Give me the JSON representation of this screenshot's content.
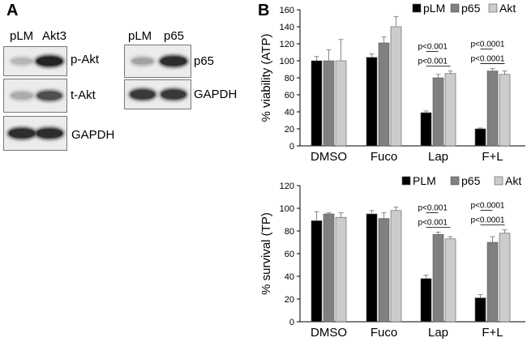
{
  "panels": {
    "a": {
      "letter": "A",
      "blot_left": {
        "lanes": [
          "pLM",
          "Akt3"
        ],
        "rows": [
          {
            "label": "p-Akt",
            "band_darkness": [
              0.25,
              0.95
            ]
          },
          {
            "label": "t-Akt",
            "band_darkness": [
              0.3,
              0.75
            ]
          },
          {
            "label": "GAPDH",
            "band_darkness": [
              0.9,
              0.9
            ]
          }
        ]
      },
      "blot_right": {
        "lanes": [
          "pLM",
          "p65"
        ],
        "rows": [
          {
            "label": "p65",
            "band_darkness": [
              0.35,
              0.9
            ]
          },
          {
            "label": "GAPDH",
            "band_darkness": [
              0.85,
              0.85
            ]
          }
        ]
      }
    },
    "b": {
      "letter": "B"
    }
  },
  "chart_data": [
    {
      "type": "bar",
      "categories": [
        "DMSO",
        "Fuco",
        "Lap",
        "F+L"
      ],
      "series": [
        {
          "name": "pLM",
          "color": "#000000",
          "values": [
            100,
            104,
            39,
            20
          ],
          "errors": [
            5,
            4,
            2,
            1
          ]
        },
        {
          "name": "p65",
          "color": "#808080",
          "values": [
            100,
            121,
            80,
            88
          ],
          "errors": [
            13,
            7,
            4,
            3
          ]
        },
        {
          "name": "Akt",
          "color": "#cccccc",
          "values": [
            100,
            140,
            85,
            84
          ],
          "errors": [
            25,
            12,
            3,
            4
          ]
        }
      ],
      "ylabel": "% viability (ATP)",
      "ylim": [
        0,
        160
      ],
      "yticks": [
        0,
        20,
        40,
        60,
        80,
        100,
        120,
        140,
        160
      ],
      "legend_position": "top-right",
      "annotations": [
        {
          "text": "p<0.001",
          "category": "Lap",
          "from": "pLM",
          "to": "p65"
        },
        {
          "text": "p<0.001",
          "category": "Lap",
          "from": "pLM",
          "to": "Akt"
        },
        {
          "text": "p<0.0001",
          "category": "F+L",
          "from": "pLM",
          "to": "p65"
        },
        {
          "text": "p<0.0001",
          "category": "F+L",
          "from": "pLM",
          "to": "Akt"
        }
      ]
    },
    {
      "type": "bar",
      "categories": [
        "DMSO",
        "Fuco",
        "Lap",
        "F+L"
      ],
      "series": [
        {
          "name": "PLM",
          "color": "#000000",
          "values": [
            89,
            95,
            38,
            21
          ],
          "errors": [
            8,
            3,
            3,
            3
          ]
        },
        {
          "name": "p65",
          "color": "#808080",
          "values": [
            95,
            91,
            77,
            70
          ],
          "errors": [
            1,
            5,
            2,
            5
          ]
        },
        {
          "name": "Akt",
          "color": "#cccccc",
          "values": [
            92,
            98,
            73,
            78
          ],
          "errors": [
            4,
            3,
            2,
            3
          ]
        }
      ],
      "ylabel": "% survival (TP)",
      "ylim": [
        0,
        120
      ],
      "yticks": [
        0,
        20,
        40,
        60,
        80,
        100,
        120
      ],
      "legend_position": "top-right",
      "annotations": [
        {
          "text": "p<0.001",
          "category": "Lap",
          "from": "PLM",
          "to": "p65"
        },
        {
          "text": "p<0.001",
          "category": "Lap",
          "from": "PLM",
          "to": "Akt"
        },
        {
          "text": "p<0.0001",
          "category": "F+L",
          "from": "PLM",
          "to": "p65"
        },
        {
          "text": "p<0.0001",
          "category": "F+L",
          "from": "PLM",
          "to": "Akt"
        }
      ]
    }
  ]
}
